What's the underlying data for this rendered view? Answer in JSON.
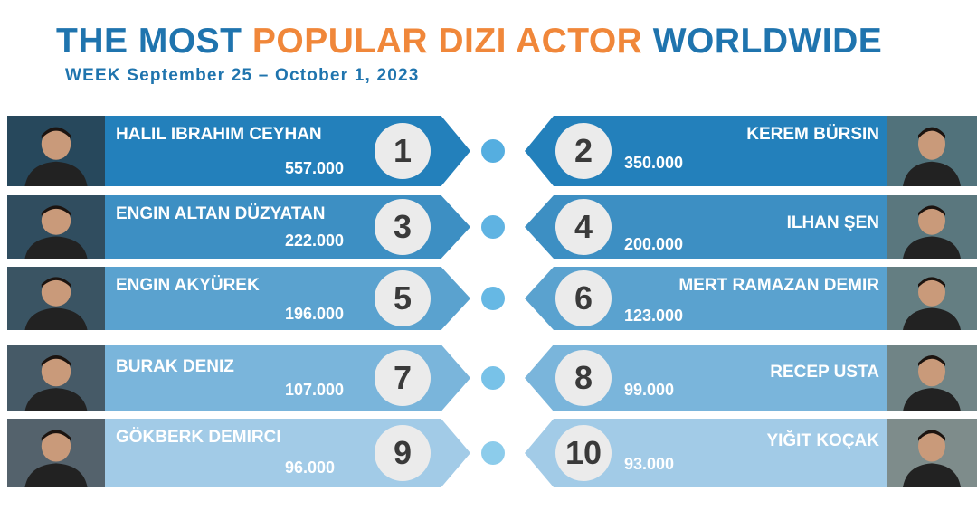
{
  "header": {
    "title_part1": "THE MOST ",
    "title_part2": "POPULAR DIZI ACTOR",
    "title_part3": " WORLDWIDE",
    "week": "WEEK September 25 – October 1, 2023"
  },
  "colors": {
    "title_blue": "#1f74ae",
    "title_orange": "#f0873a",
    "row_colors": [
      "#2380bb",
      "#3d8fc3",
      "#5aa2cf",
      "#7ab5db",
      "#a2cbe7"
    ],
    "dot_colors": [
      "#55aee0",
      "#5fb3e2",
      "#66b8e4",
      "#78c2e8",
      "#8ccceb"
    ],
    "rank_circle": "#ebebeb"
  },
  "rows": [
    {
      "left": {
        "rank": "1",
        "name": "HALIL IBRAHIM CEYHAN",
        "votes": "557.000"
      },
      "right": {
        "rank": "2",
        "name": "KEREM BÜRSIN",
        "votes": "350.000"
      }
    },
    {
      "left": {
        "rank": "3",
        "name": "ENGIN ALTAN DÜZYATAN",
        "votes": "222.000"
      },
      "right": {
        "rank": "4",
        "name": "ILHAN ŞEN",
        "votes": "200.000"
      }
    },
    {
      "left": {
        "rank": "5",
        "name": "ENGIN AKYÜREK",
        "votes": "196.000"
      },
      "right": {
        "rank": "6",
        "name": "MERT RAMAZAN DEMIR",
        "votes": "123.000"
      }
    },
    {
      "left": {
        "rank": "7",
        "name": "BURAK DENIZ",
        "votes": "107.000"
      },
      "right": {
        "rank": "8",
        "name": "RECEP USTA",
        "votes": "99.000"
      }
    },
    {
      "left": {
        "rank": "9",
        "name": "GÖKBERK DEMIRCI",
        "votes": "96.000"
      },
      "right": {
        "rank": "10",
        "name": "YIĞIT KOÇAK",
        "votes": "93.000"
      }
    }
  ]
}
